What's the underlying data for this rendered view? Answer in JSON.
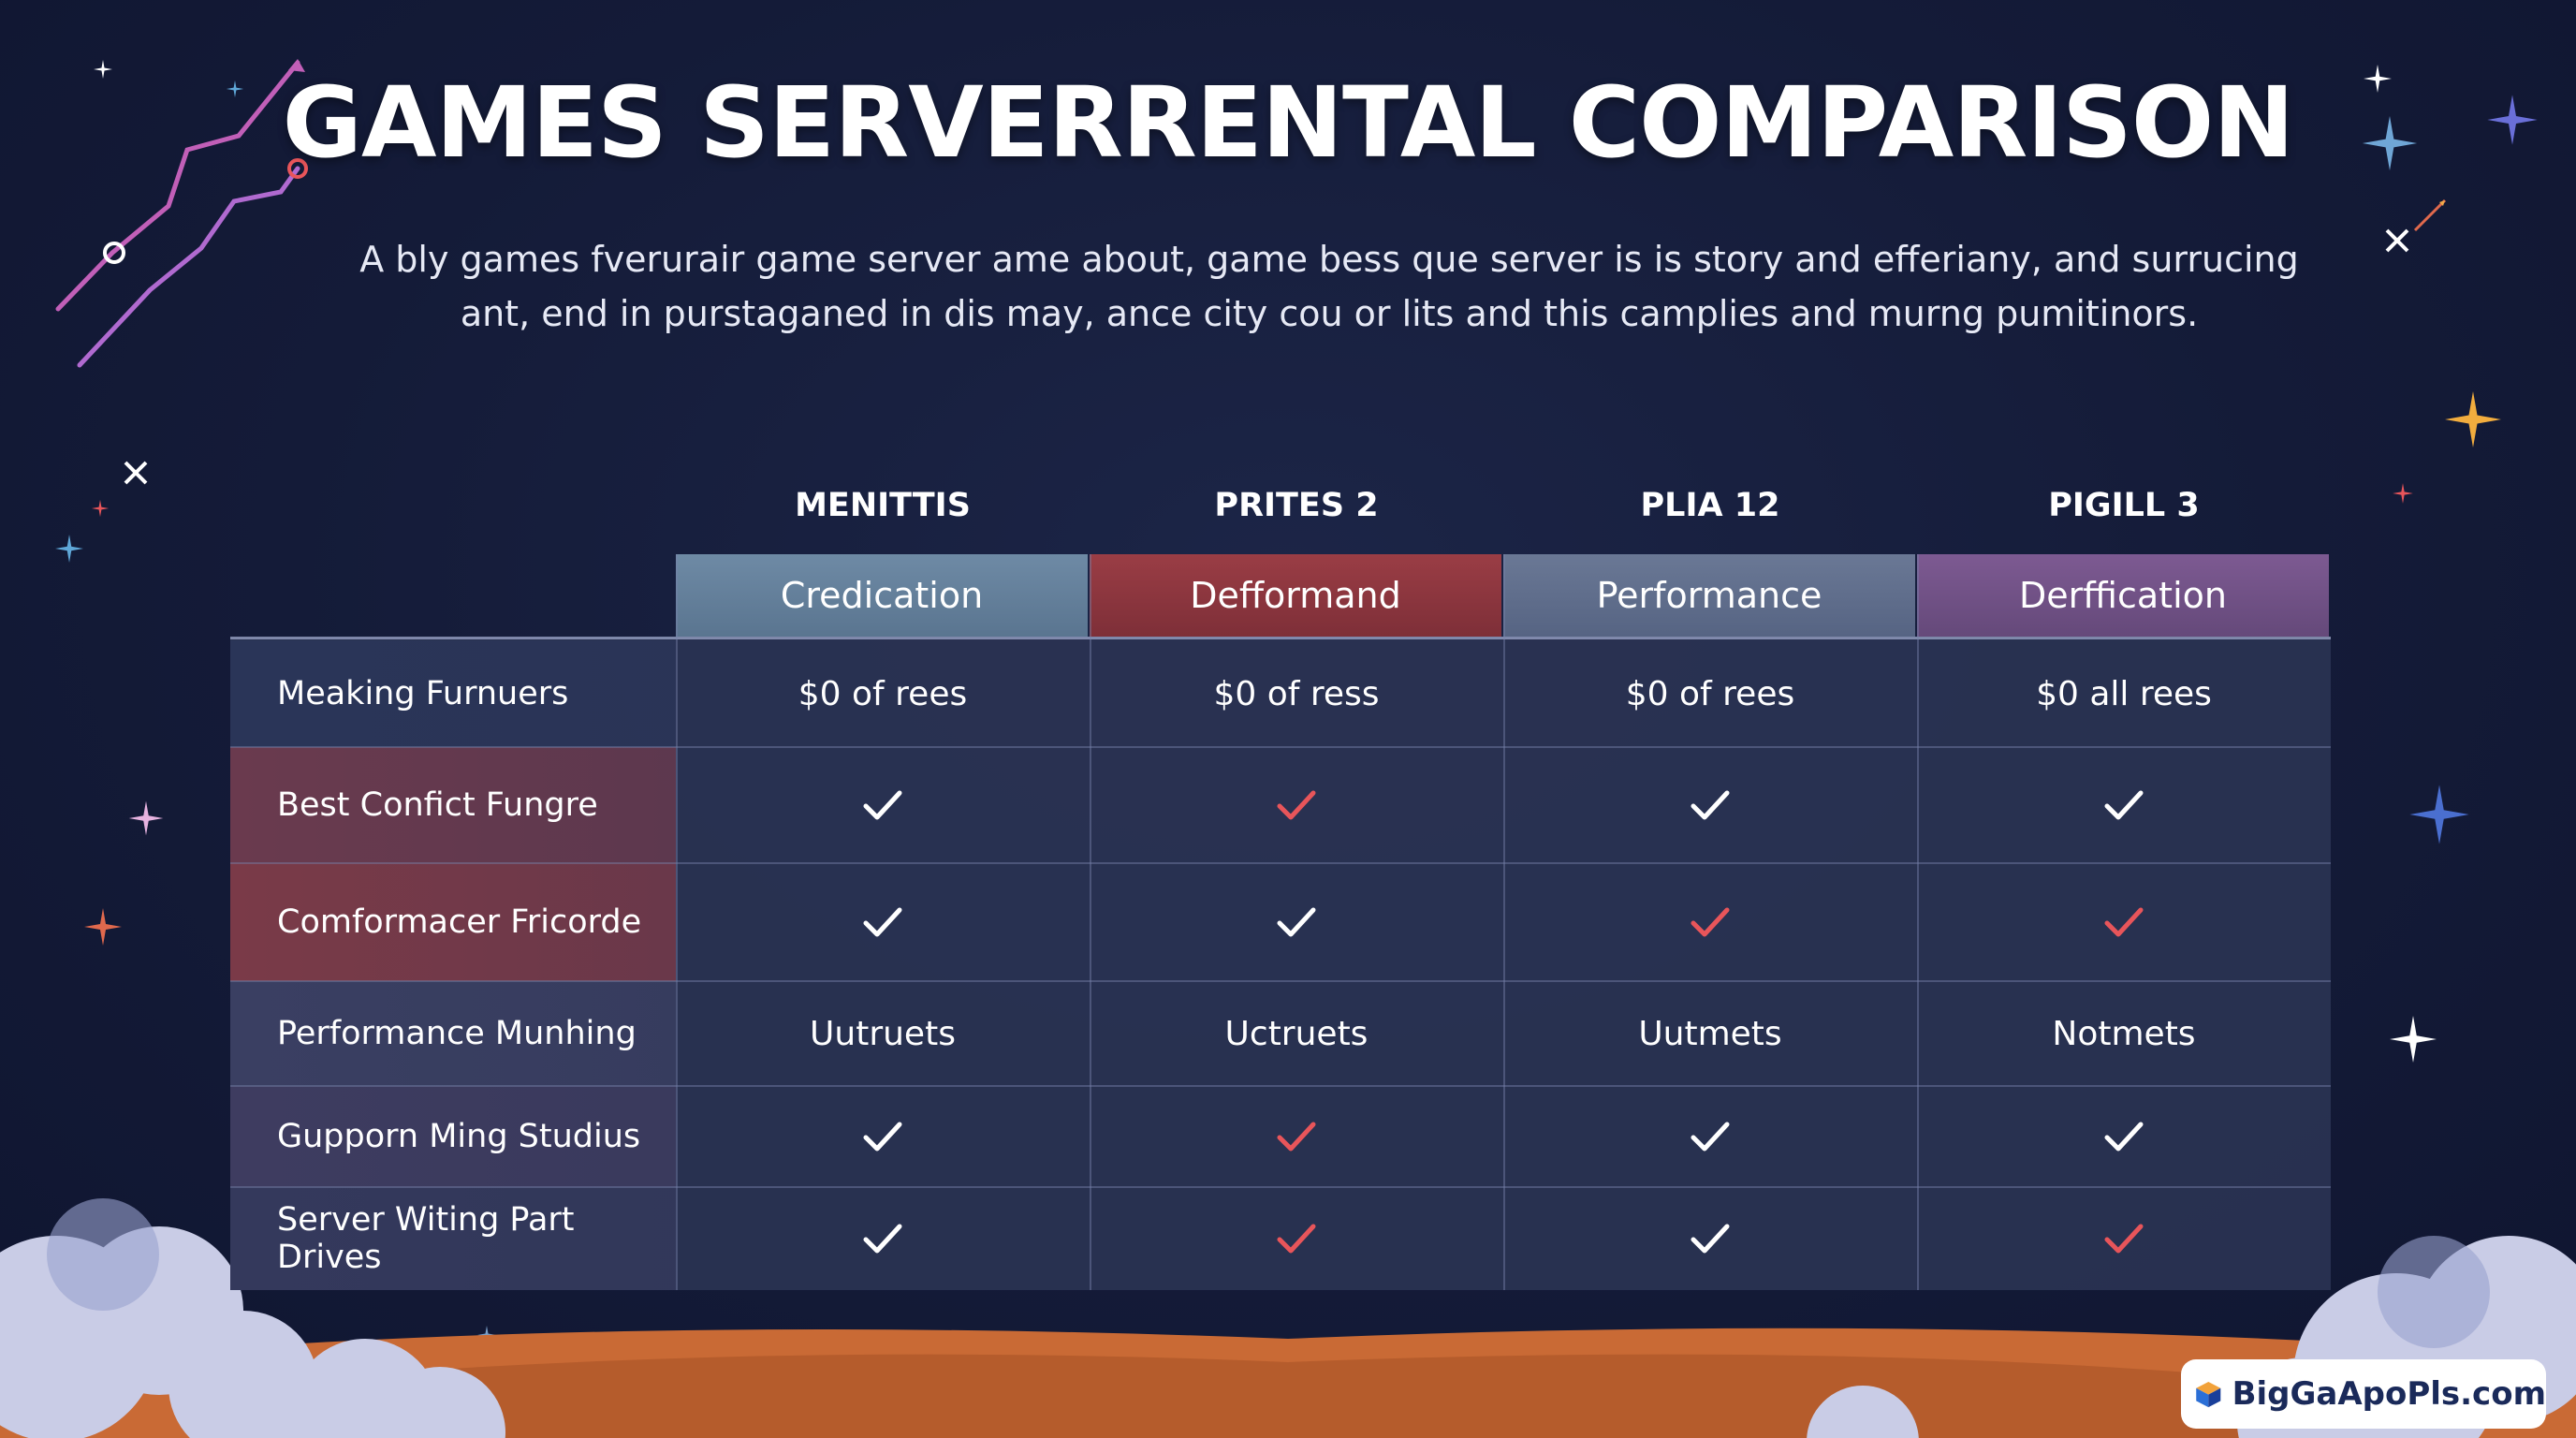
{
  "title": "GAMES SERVERRENTAL COMPARISON",
  "subtitle_line1": "A bly games fverurair game server ame about, game bess que server is is story and efferiany, and surrucing",
  "subtitle_line2": "ant, end in purstaganed in dis may, ance city cou or lits and this camplies and murng pumitinors.",
  "columns": [
    {
      "name": "MENITTIS",
      "header": "Credication"
    },
    {
      "name": "PRITES 2",
      "header": "Defformand"
    },
    {
      "name": "PLIA 12",
      "header": "Performance"
    },
    {
      "name": "PIGILL 3",
      "header": "Derffication"
    }
  ],
  "rows": [
    {
      "label": "Meaking Furnuers",
      "cells": [
        {
          "text": "$0 of rees"
        },
        {
          "text": "$0 of ress"
        },
        {
          "text": "$0 of rees"
        },
        {
          "text": "$0 all rees"
        }
      ]
    },
    {
      "label": "Best Confict Fungre",
      "cells": [
        {
          "icon": "check-icon",
          "color": "#ffffff"
        },
        {
          "icon": "check-icon",
          "color": "#e8555a"
        },
        {
          "icon": "check-icon",
          "color": "#ffffff"
        },
        {
          "icon": "check-icon",
          "color": "#ffffff"
        }
      ]
    },
    {
      "label": "Comformacer Fricorde",
      "cells": [
        {
          "icon": "check-icon",
          "color": "#ffffff"
        },
        {
          "icon": "check-icon",
          "color": "#ffffff"
        },
        {
          "icon": "check-icon",
          "color": "#e8555a"
        },
        {
          "icon": "check-icon",
          "color": "#e8555a"
        }
      ]
    },
    {
      "label": "Performance Munhing",
      "cells": [
        {
          "text": "Uutruets"
        },
        {
          "text": "Uctruets"
        },
        {
          "text": "Uutmets"
        },
        {
          "text": "Notmets"
        }
      ]
    },
    {
      "label": "Gupporn Ming Studius",
      "cells": [
        {
          "icon": "check-icon",
          "color": "#ffffff"
        },
        {
          "icon": "check-icon",
          "color": "#e8555a"
        },
        {
          "icon": "check-icon",
          "color": "#ffffff"
        },
        {
          "icon": "check-icon",
          "color": "#ffffff"
        }
      ]
    },
    {
      "label": "Server Witing Part Drives",
      "cells": [
        {
          "icon": "check-icon",
          "color": "#ffffff"
        },
        {
          "icon": "check-icon",
          "color": "#e8555a"
        },
        {
          "icon": "check-icon",
          "color": "#ffffff"
        },
        {
          "icon": "check-icon",
          "color": "#e8555a"
        }
      ]
    }
  ],
  "row_label_colors": [
    "#2a3558",
    "#6a3a4e",
    "#7a3a48",
    "#3a3f62",
    "#3e3c60",
    "#34395c"
  ],
  "logo_text": "BigGaApoPls.com"
}
